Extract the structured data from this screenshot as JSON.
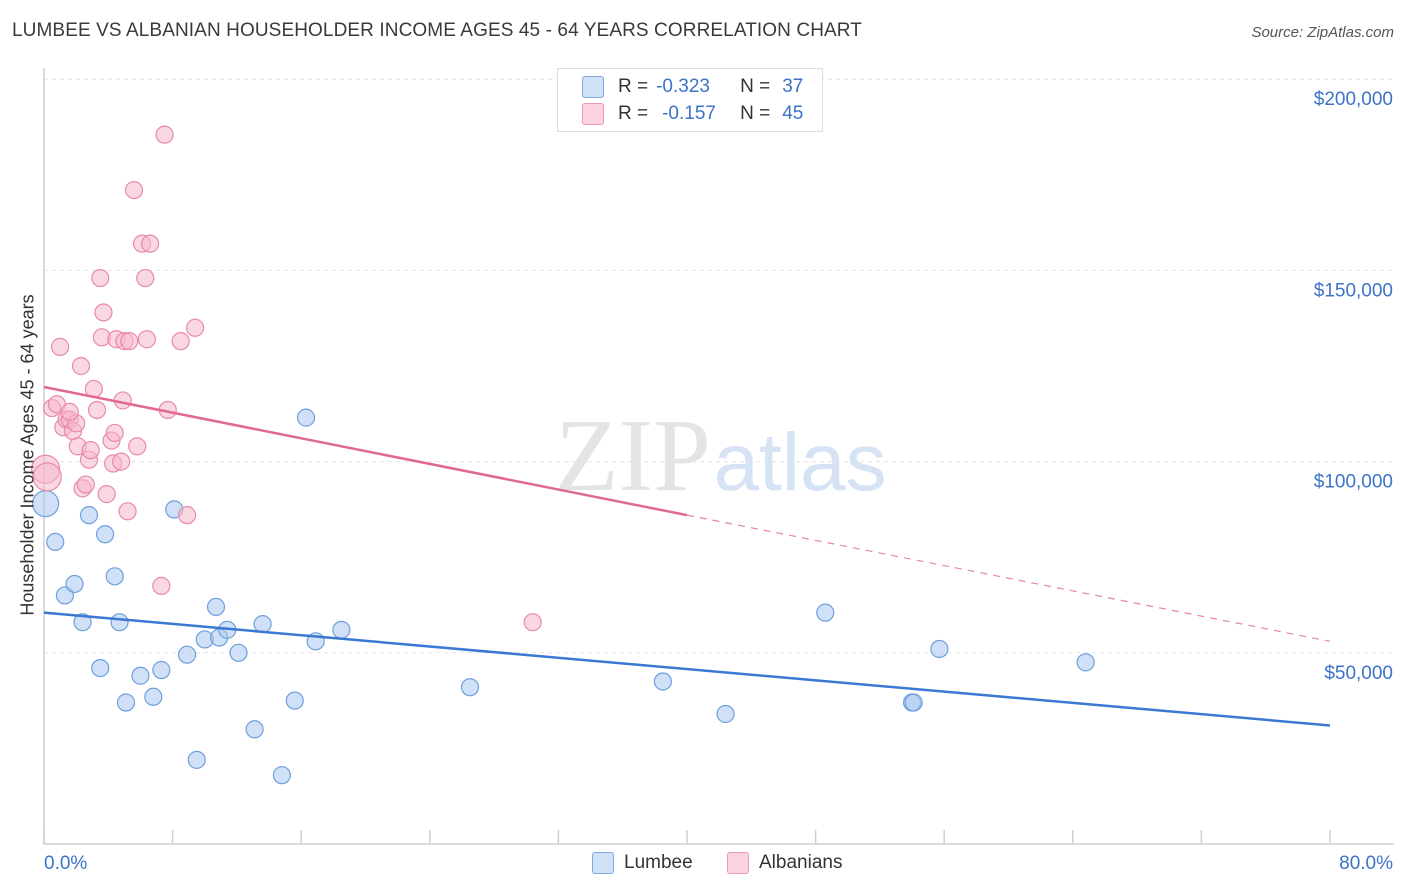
{
  "header": {
    "title": "LUMBEE VS ALBANIAN HOUSEHOLDER INCOME AGES 45 - 64 YEARS CORRELATION CHART",
    "source": "Source: ZipAtlas.com"
  },
  "watermark": {
    "zip": "ZIP",
    "atlas": "atlas"
  },
  "legend": {
    "rows": [
      {
        "r_label": "R =",
        "r_value": "-0.323",
        "n_label": "N =",
        "n_value": "37",
        "color": "#a9c8f0"
      },
      {
        "r_label": "R =",
        "r_value": "-0.157",
        "n_label": "N =",
        "n_value": "45",
        "color": "#f5b8cb"
      }
    ]
  },
  "bottom_legend": [
    {
      "label": "Lumbee",
      "color": "#a9c8f0"
    },
    {
      "label": "Albanians",
      "color": "#f5b8cb"
    }
  ],
  "chart_data": {
    "type": "scatter",
    "title": "LUMBEE VS ALBANIAN HOUSEHOLDER INCOME AGES 45 - 64 YEARS CORRELATION CHART",
    "xlabel": "",
    "ylabel": "Householder Income Ages 45 - 64 years",
    "xlim": [
      0,
      80
    ],
    "ylim": [
      0,
      210000
    ],
    "x_tick_labels": [
      "0.0%",
      "80.0%"
    ],
    "y_ticks": [
      50000,
      100000,
      150000,
      200000
    ],
    "y_tick_labels": [
      "$50,000",
      "$100,000",
      "$150,000",
      "$200,000"
    ],
    "grid": true,
    "legend_position": "top-center",
    "colors": {
      "lumbee": "#3a78d4",
      "albanians": "#e0698f",
      "lumbee_fill": "#a9c8f0",
      "albanians_fill": "#f5b8cb",
      "axis_label": "#3b73c8"
    },
    "series": [
      {
        "name": "Lumbee",
        "trend": {
          "x": [
            0,
            80
          ],
          "y": [
            60500,
            31000
          ]
        },
        "points": [
          [
            0.1,
            89000
          ],
          [
            0.7,
            79000
          ],
          [
            1.3,
            65000
          ],
          [
            1.9,
            68000
          ],
          [
            2.4,
            58000
          ],
          [
            2.8,
            86000
          ],
          [
            3.5,
            46000
          ],
          [
            3.8,
            81000
          ],
          [
            4.4,
            70000
          ],
          [
            4.7,
            58000
          ],
          [
            5.1,
            37000
          ],
          [
            6.0,
            44000
          ],
          [
            6.8,
            38500
          ],
          [
            7.3,
            45500
          ],
          [
            8.1,
            87500
          ],
          [
            8.9,
            49500
          ],
          [
            9.5,
            22000
          ],
          [
            10.0,
            53500
          ],
          [
            10.7,
            62000
          ],
          [
            10.9,
            54000
          ],
          [
            11.4,
            56000
          ],
          [
            12.1,
            50000
          ],
          [
            13.1,
            30000
          ],
          [
            13.6,
            57500
          ],
          [
            14.8,
            18000
          ],
          [
            15.6,
            37500
          ],
          [
            16.3,
            111500
          ],
          [
            16.9,
            53000
          ],
          [
            18.5,
            56000
          ],
          [
            26.5,
            41000
          ],
          [
            38.5,
            42500
          ],
          [
            42.4,
            34000
          ],
          [
            48.6,
            60500
          ],
          [
            54.0,
            37000
          ],
          [
            54.1,
            37000
          ],
          [
            55.7,
            51000
          ],
          [
            64.8,
            47500
          ]
        ]
      },
      {
        "name": "Albanians",
        "trend": {
          "x": [
            0,
            40
          ],
          "y": [
            119500,
            86000
          ]
        },
        "trend_extension": {
          "x": [
            40,
            80
          ],
          "y": [
            86000,
            53000
          ]
        },
        "points": [
          [
            0.1,
            98000
          ],
          [
            0.2,
            96000
          ],
          [
            0.5,
            114000
          ],
          [
            0.8,
            115000
          ],
          [
            1.0,
            130000
          ],
          [
            1.2,
            109000
          ],
          [
            1.4,
            111000
          ],
          [
            1.6,
            111000
          ],
          [
            1.8,
            108000
          ],
          [
            2.0,
            110000
          ],
          [
            2.1,
            104000
          ],
          [
            2.3,
            125000
          ],
          [
            2.4,
            93000
          ],
          [
            2.6,
            94000
          ],
          [
            2.8,
            100500
          ],
          [
            2.9,
            103000
          ],
          [
            3.1,
            119000
          ],
          [
            3.3,
            113500
          ],
          [
            3.5,
            148000
          ],
          [
            3.6,
            132500
          ],
          [
            3.7,
            139000
          ],
          [
            3.9,
            91500
          ],
          [
            4.2,
            105500
          ],
          [
            4.3,
            99500
          ],
          [
            4.4,
            107500
          ],
          [
            4.5,
            132000
          ],
          [
            4.8,
            100000
          ],
          [
            4.9,
            116000
          ],
          [
            5.0,
            131500
          ],
          [
            5.2,
            87000
          ],
          [
            5.3,
            131500
          ],
          [
            5.6,
            171000
          ],
          [
            5.8,
            104000
          ],
          [
            6.1,
            157000
          ],
          [
            6.3,
            148000
          ],
          [
            6.4,
            132000
          ],
          [
            6.6,
            157000
          ],
          [
            7.3,
            67500
          ],
          [
            7.5,
            185500
          ],
          [
            7.7,
            113500
          ],
          [
            8.5,
            131500
          ],
          [
            8.9,
            86000
          ],
          [
            9.4,
            135000
          ],
          [
            30.4,
            58000
          ],
          [
            1.6,
            113000
          ]
        ]
      }
    ]
  }
}
